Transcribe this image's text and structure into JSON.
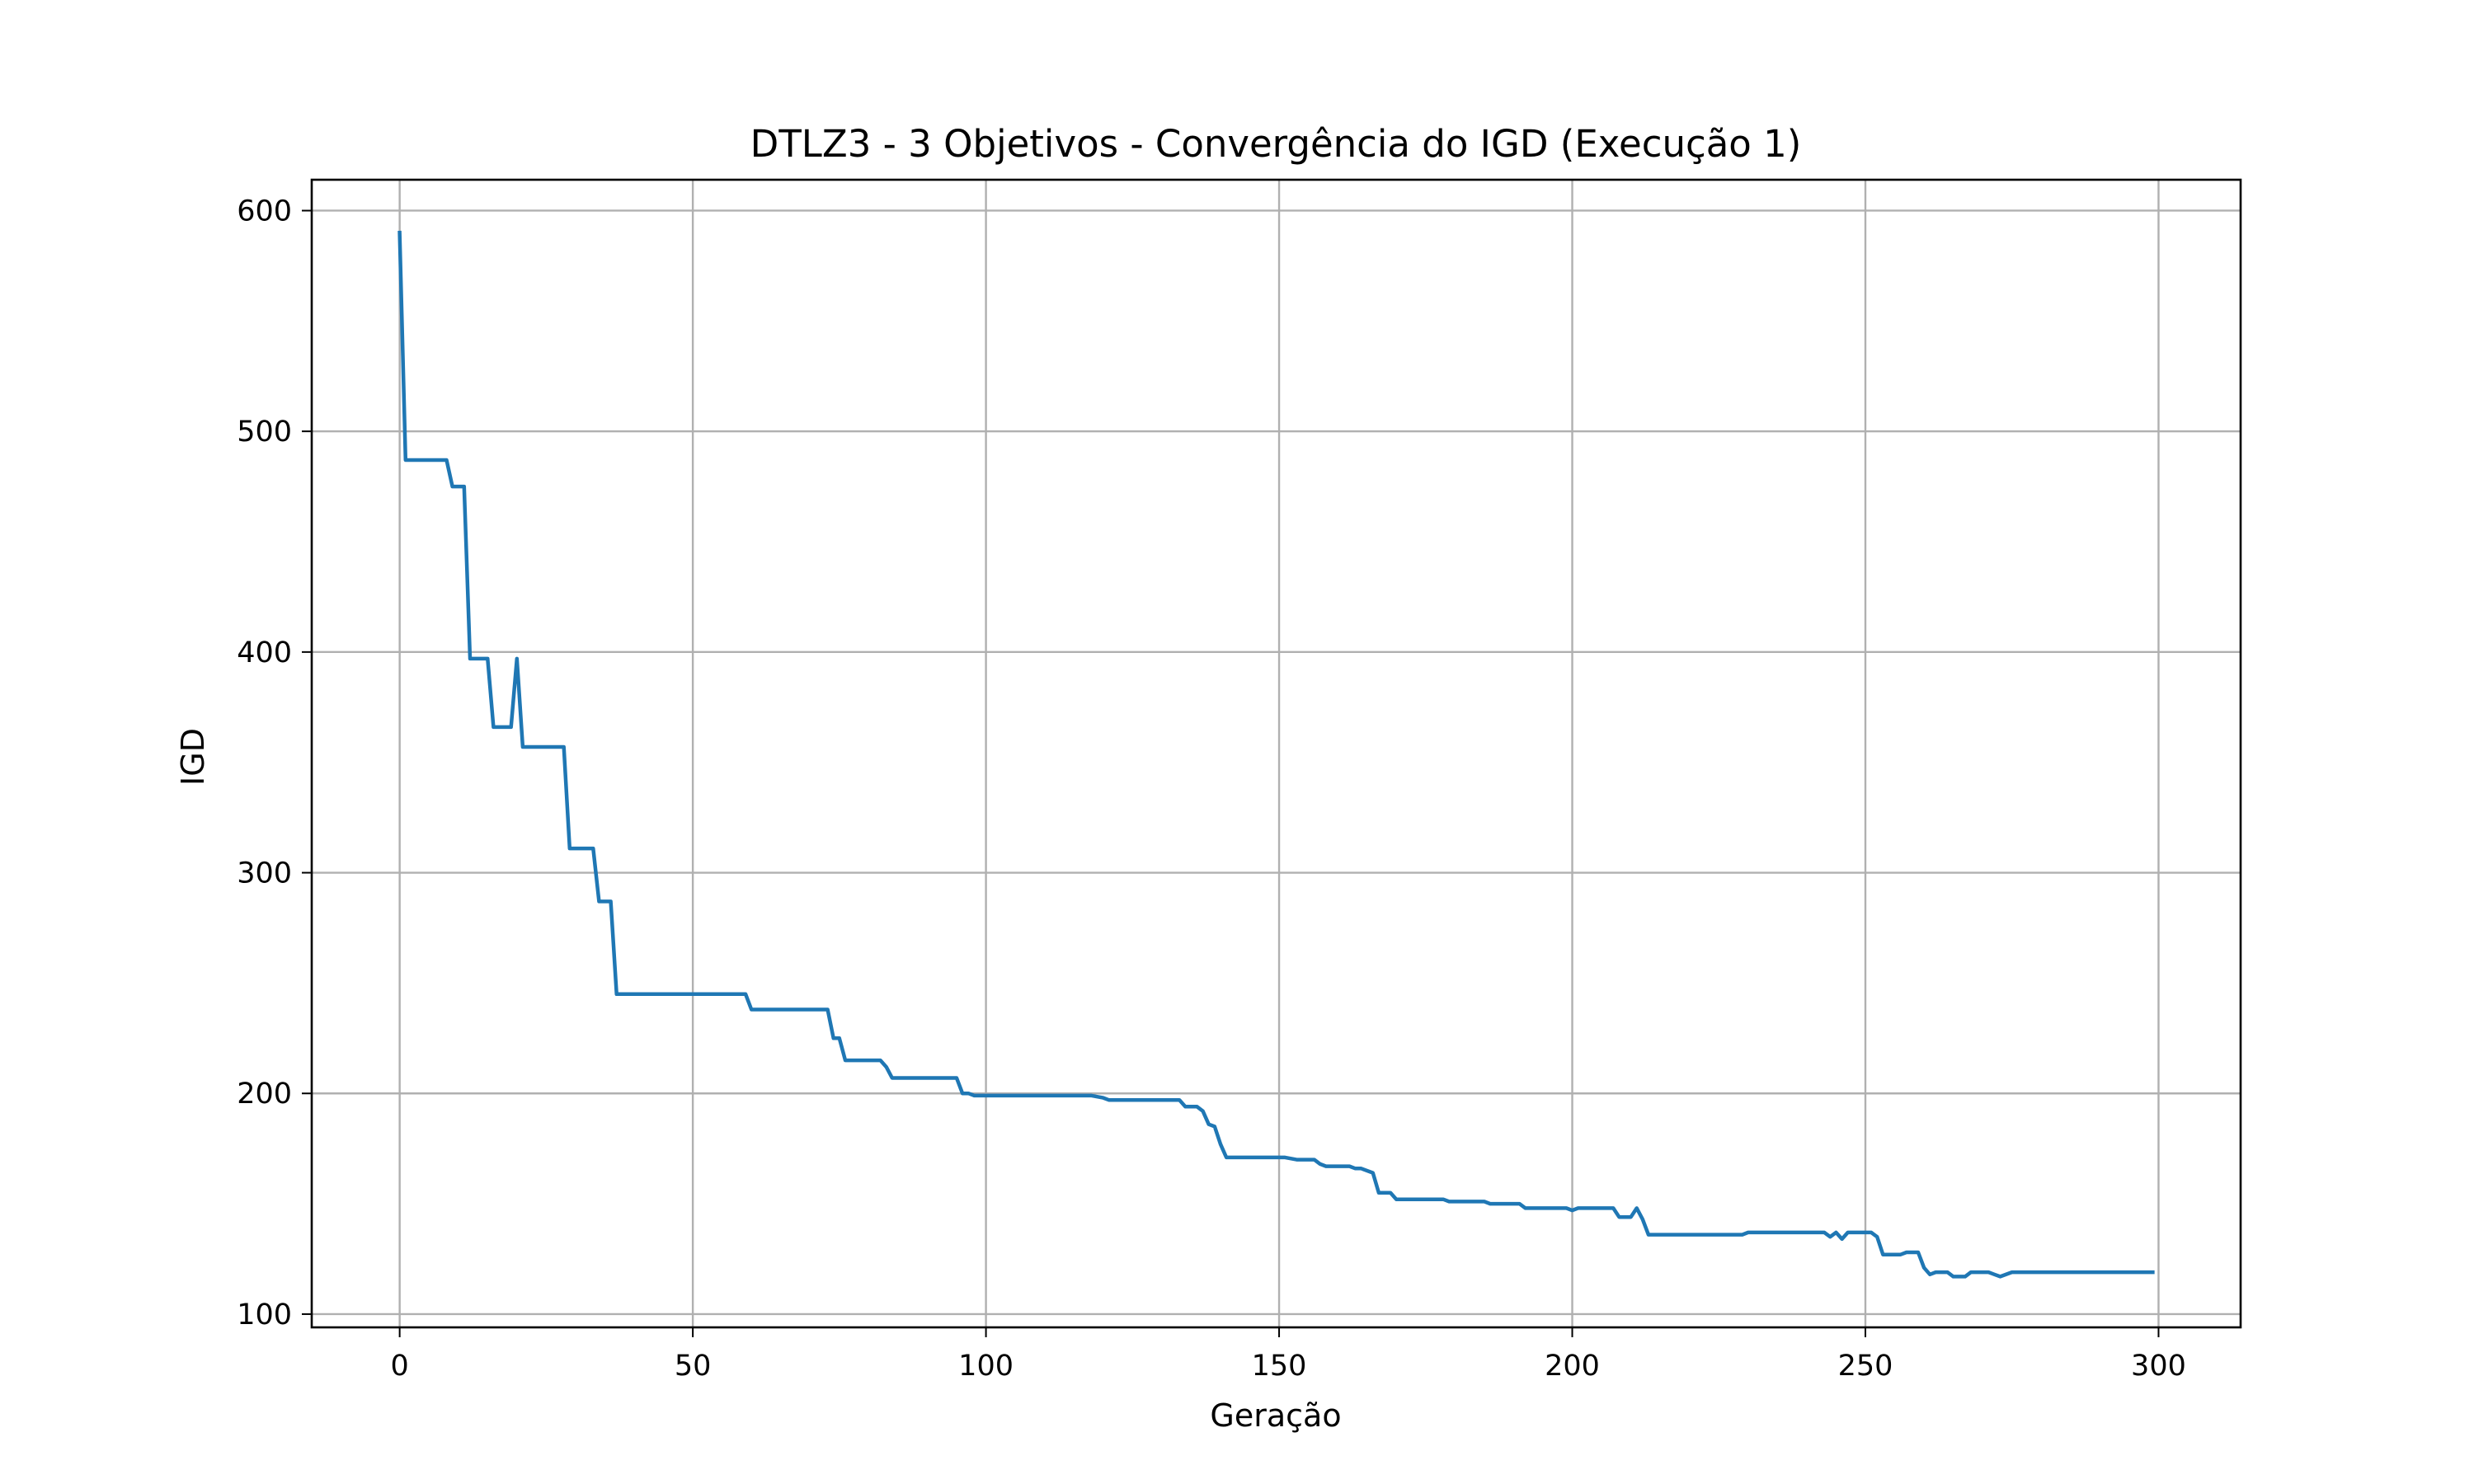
{
  "chart_data": {
    "type": "line",
    "title": "DTLZ3 - 3 Objetivos - Convergência do IGD (Execução 1)",
    "xlabel": "Geração",
    "ylabel": "IGD",
    "xlim": [
      -15,
      314
    ],
    "ylim": [
      94,
      614
    ],
    "xticks": [
      0,
      50,
      100,
      150,
      200,
      250,
      300
    ],
    "yticks": [
      100,
      200,
      300,
      400,
      500,
      600
    ],
    "grid": true,
    "legend": "none",
    "line_color": "#1f77b4",
    "series": [
      {
        "x": [
          0,
          1,
          2,
          8,
          9,
          10,
          11,
          12,
          13,
          14,
          15,
          16,
          17,
          18,
          19,
          20,
          21,
          22,
          27,
          28,
          29,
          30,
          33,
          34,
          35,
          36,
          37,
          38,
          59,
          60,
          61,
          73,
          74,
          75,
          76,
          77,
          82,
          83,
          84,
          95,
          96,
          97,
          98,
          118,
          120,
          121,
          133,
          134,
          136,
          137,
          138,
          139,
          140,
          141,
          151,
          153,
          156,
          157,
          158,
          162,
          163,
          164,
          166,
          167,
          169,
          170,
          178,
          179,
          185,
          186,
          191,
          192,
          193,
          199,
          200,
          201,
          207,
          208,
          210,
          211,
          212,
          213,
          214,
          229,
          230,
          243,
          244,
          245,
          246,
          247,
          248,
          251,
          252,
          253,
          256,
          257,
          259,
          260,
          261,
          262,
          264,
          265,
          267,
          268,
          271,
          272,
          273,
          274,
          275,
          299
        ],
        "y": [
          590,
          487,
          487,
          487,
          475,
          475,
          475,
          397,
          397,
          397,
          397,
          366,
          366,
          366,
          366,
          397,
          357,
          357,
          357,
          357,
          311,
          311,
          311,
          287,
          287,
          287,
          245,
          245,
          245,
          238,
          238,
          238,
          225,
          225,
          215,
          215,
          215,
          212,
          207,
          207,
          200,
          200,
          199,
          199,
          198,
          197,
          197,
          194,
          194,
          192,
          186,
          185,
          177,
          171,
          171,
          170,
          170,
          168,
          167,
          167,
          166,
          166,
          164,
          155,
          155,
          152,
          152,
          151,
          151,
          150,
          150,
          148,
          148,
          148,
          147,
          148,
          148,
          144,
          144,
          148,
          143,
          136,
          136,
          136,
          137,
          137,
          135,
          137,
          134,
          137,
          137,
          137,
          135,
          127,
          127,
          128,
          128,
          121,
          118,
          119,
          119,
          117,
          117,
          119,
          119,
          118,
          117,
          118,
          119,
          119
        ]
      }
    ]
  }
}
